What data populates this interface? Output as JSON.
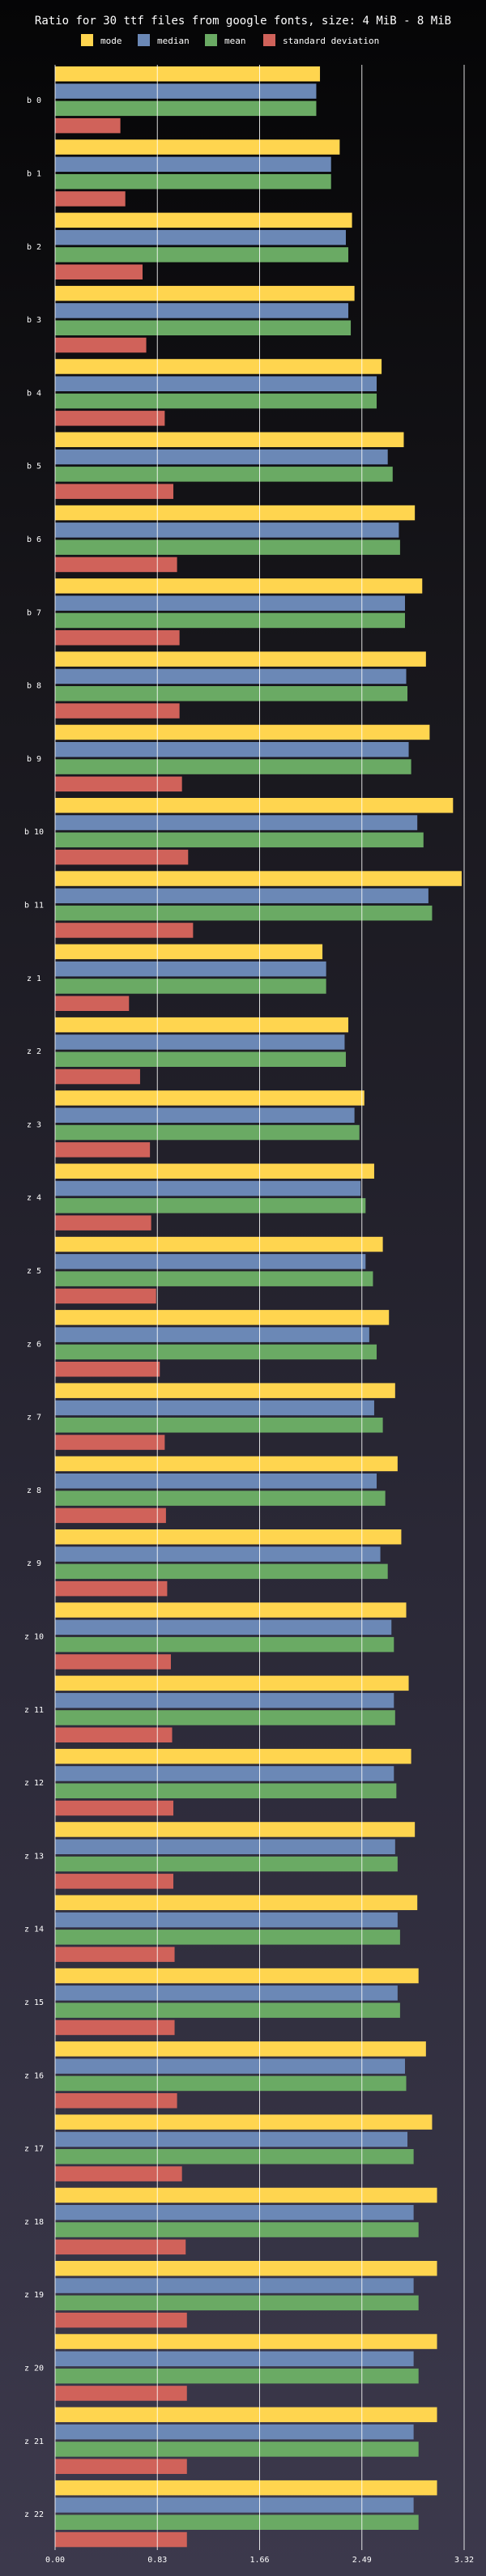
{
  "chart_data": {
    "type": "bar",
    "orientation": "horizontal",
    "title": "Ratio for 30 ttf files from google fonts, size: 4 MiB - 8 MiB",
    "xlabel": "",
    "ylabel": "",
    "xlim": [
      0,
      3.32
    ],
    "xticks": [
      "0.00",
      "0.83",
      "1.66",
      "2.49",
      "3.32"
    ],
    "grid": true,
    "legend_position": "top",
    "categories": [
      "b 0",
      "b 1",
      "b 2",
      "b 3",
      "b 4",
      "b 5",
      "b 6",
      "b 7",
      "b 8",
      "b 9",
      "b 10",
      "b 11",
      "z 1",
      "z 2",
      "z 3",
      "z 4",
      "z 5",
      "z 6",
      "z 7",
      "z 8",
      "z 9",
      "z 10",
      "z 11",
      "z 12",
      "z 13",
      "z 14",
      "z 15",
      "z 16",
      "z 17",
      "z 18",
      "z 19",
      "z 20",
      "z 21",
      "z 22"
    ],
    "series": [
      {
        "name": "mode",
        "color": "#ffd54f",
        "values": [
          2.15,
          2.31,
          2.41,
          2.43,
          2.65,
          2.83,
          2.92,
          2.98,
          3.01,
          3.04,
          3.23,
          3.3,
          2.17,
          2.38,
          2.51,
          2.59,
          2.66,
          2.71,
          2.76,
          2.78,
          2.81,
          2.85,
          2.87,
          2.89,
          2.92,
          2.94,
          2.95,
          3.01,
          3.06,
          3.1,
          3.1,
          3.1,
          3.1,
          3.1
        ]
      },
      {
        "name": "median",
        "color": "#6b88b6",
        "values": [
          2.12,
          2.24,
          2.36,
          2.38,
          2.61,
          2.7,
          2.79,
          2.84,
          2.85,
          2.87,
          2.94,
          3.03,
          2.2,
          2.35,
          2.43,
          2.48,
          2.52,
          2.55,
          2.59,
          2.61,
          2.64,
          2.73,
          2.75,
          2.75,
          2.76,
          2.78,
          2.78,
          2.84,
          2.86,
          2.91,
          2.91,
          2.91,
          2.91,
          2.91
        ]
      },
      {
        "name": "mean",
        "color": "#6aaa64",
        "values": [
          2.12,
          2.24,
          2.38,
          2.4,
          2.61,
          2.74,
          2.8,
          2.84,
          2.86,
          2.89,
          2.99,
          3.06,
          2.2,
          2.36,
          2.47,
          2.52,
          2.58,
          2.61,
          2.66,
          2.68,
          2.7,
          2.75,
          2.76,
          2.77,
          2.78,
          2.8,
          2.8,
          2.85,
          2.91,
          2.95,
          2.95,
          2.95,
          2.95,
          2.95
        ]
      },
      {
        "name": "standard deviation",
        "color": "#d0625a",
        "values": [
          0.53,
          0.57,
          0.71,
          0.74,
          0.89,
          0.96,
          0.99,
          1.01,
          1.01,
          1.03,
          1.08,
          1.12,
          0.6,
          0.69,
          0.77,
          0.78,
          0.82,
          0.85,
          0.89,
          0.9,
          0.91,
          0.94,
          0.95,
          0.96,
          0.96,
          0.97,
          0.97,
          0.99,
          1.03,
          1.06,
          1.07,
          1.07,
          1.07,
          1.07
        ]
      }
    ]
  }
}
